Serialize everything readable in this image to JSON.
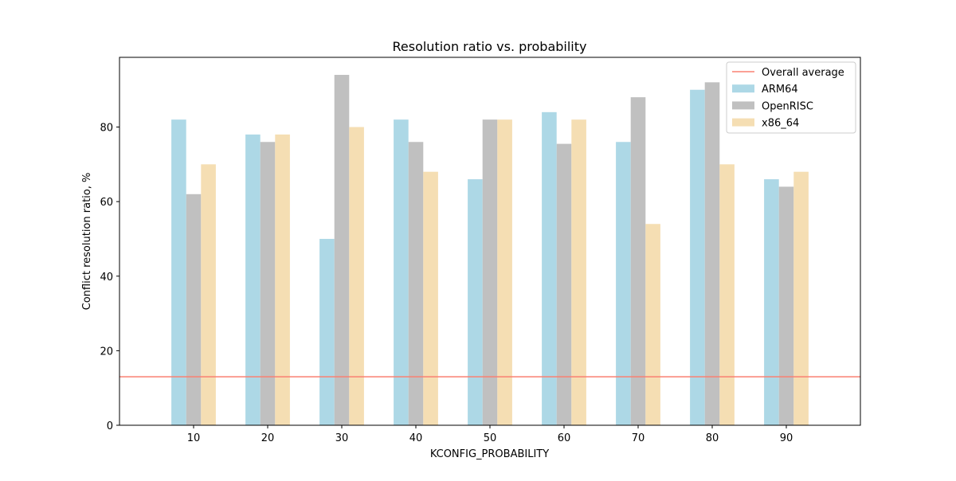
{
  "chart_data": {
    "type": "bar",
    "title": "Resolution ratio vs. probability",
    "xlabel": "KCONFIG_PROBABILITY",
    "ylabel": "Conflict resolution ratio, %",
    "categories": [
      "10",
      "20",
      "30",
      "40",
      "50",
      "60",
      "70",
      "80",
      "90"
    ],
    "ylim": [
      0,
      98.7
    ],
    "yticks": [
      "0",
      "20",
      "40",
      "60",
      "80"
    ],
    "grid": false,
    "legend_position": "top-right",
    "series": [
      {
        "name": "ARM64",
        "color": "#add8e6",
        "values": [
          82,
          78,
          50,
          82,
          66,
          84,
          76,
          90,
          66
        ]
      },
      {
        "name": "OpenRISC",
        "color": "#c0c0c0",
        "values": [
          62,
          76,
          94,
          76,
          82,
          75.5,
          88,
          92,
          64
        ]
      },
      {
        "name": "x86_64",
        "color": "#f5deb3",
        "values": [
          70,
          78,
          80,
          68,
          82,
          82,
          54,
          70,
          68
        ]
      }
    ],
    "reference_line": {
      "name": "Overall average",
      "value": 13,
      "color": "#fa8072"
    }
  }
}
